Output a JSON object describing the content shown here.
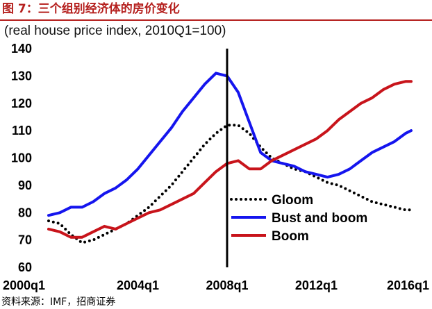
{
  "figure_title": "图 7：三个组别经济体的房价变化",
  "source_note": "资料来源：IMF，招商证券",
  "chart_data": {
    "type": "line",
    "subtitle": "(real house price index, 2010Q1=100)",
    "ylim": [
      60,
      140
    ],
    "yticks": [
      60,
      70,
      80,
      90,
      100,
      110,
      120,
      130,
      140
    ],
    "xlim": [
      2000,
      2016.5
    ],
    "xticks": [
      {
        "value": 2000,
        "label": "2000q1"
      },
      {
        "value": 2004,
        "label": "2004q1"
      },
      {
        "value": 2008,
        "label": "2008q1"
      },
      {
        "value": 2012,
        "label": "2012q1"
      },
      {
        "value": 2016,
        "label": "2016q1"
      }
    ],
    "vline": 2008,
    "grid": false,
    "legend": "lower-right",
    "series": [
      {
        "name": "Gloom",
        "color": "#000000",
        "style": "dotted",
        "x": [
          2000,
          2000.5,
          2001,
          2001.5,
          2002,
          2002.5,
          2003,
          2003.5,
          2004,
          2004.5,
          2005,
          2005.5,
          2006,
          2006.5,
          2007,
          2007.5,
          2008,
          2008.5,
          2009,
          2009.5,
          2010,
          2010.5,
          2011,
          2011.5,
          2012,
          2012.5,
          2013,
          2013.5,
          2014,
          2014.5,
          2015,
          2015.5,
          2016,
          2016.25
        ],
        "y": [
          77,
          76,
          72,
          69,
          70,
          72,
          74,
          76,
          79,
          82,
          86,
          90,
          95,
          100,
          105,
          109,
          112,
          112,
          109,
          104,
          100,
          98,
          96,
          95,
          93,
          91,
          90,
          88,
          86,
          84,
          83,
          82,
          81,
          81
        ]
      },
      {
        "name": "Bust and boom",
        "color": "#1515ee",
        "style": "solid",
        "x": [
          2000,
          2000.5,
          2001,
          2001.5,
          2002,
          2002.5,
          2003,
          2003.5,
          2004,
          2004.5,
          2005,
          2005.5,
          2006,
          2006.5,
          2007,
          2007.5,
          2008,
          2008.5,
          2009,
          2009.5,
          2010,
          2010.5,
          2011,
          2011.5,
          2012,
          2012.5,
          2013,
          2013.5,
          2014,
          2014.5,
          2015,
          2015.5,
          2016,
          2016.25
        ],
        "y": [
          79,
          80,
          82,
          82,
          84,
          87,
          89,
          92,
          96,
          101,
          106,
          111,
          117,
          122,
          127,
          131,
          130,
          124,
          113,
          102,
          99,
          98,
          97,
          95,
          94,
          93,
          94,
          96,
          99,
          102,
          104,
          106,
          109,
          110
        ]
      },
      {
        "name": "Boom",
        "color": "#c8141b",
        "style": "solid",
        "x": [
          2000,
          2000.5,
          2001,
          2001.5,
          2002,
          2002.5,
          2003,
          2003.5,
          2004,
          2004.5,
          2005,
          2005.5,
          2006,
          2006.5,
          2007,
          2007.5,
          2008,
          2008.5,
          2009,
          2009.5,
          2010,
          2010.5,
          2011,
          2011.5,
          2012,
          2012.5,
          2013,
          2013.5,
          2014,
          2014.5,
          2015,
          2015.5,
          2016,
          2016.25
        ],
        "y": [
          74,
          73,
          71,
          71,
          73,
          75,
          74,
          76,
          78,
          80,
          81,
          83,
          85,
          87,
          91,
          95,
          98,
          99,
          96,
          96,
          99,
          101,
          103,
          105,
          107,
          110,
          114,
          117,
          120,
          122,
          125,
          127,
          128,
          128
        ]
      }
    ]
  }
}
